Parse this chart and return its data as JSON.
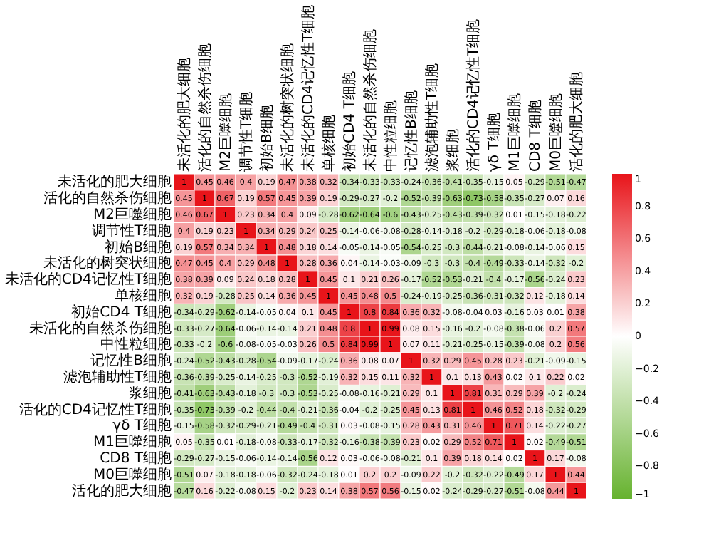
{
  "chart_data": {
    "type": "heatmap",
    "categories": [
      "未活化的肥大细胞",
      "活化的自然杀伤细胞",
      "M2巨噬细胞",
      "调节性T细胞",
      "初始B细胞",
      "未活化的树突状细胞",
      "未活化的CD4记忆性T细胞",
      "单核细胞",
      "初始CD4 T细胞",
      "未活化的自然杀伤细胞",
      "中性粒细胞",
      "记忆性B细胞",
      "滤泡辅助性T细胞",
      "浆细胞",
      "活化的CD4记忆性T细胞",
      "γδ T细胞",
      "M1巨噬细胞",
      "CD8 T细胞",
      "M0巨噬细胞",
      "活化的肥大细胞"
    ],
    "y_categories": [
      "未活化的肥大细胞",
      "活化的自然杀伤细胞",
      "M2巨噬细胞",
      "调节性T细胞",
      "初始B细胞",
      "未活化的树突状细胞",
      "未活化的CD4记忆性T细胞",
      "单核细胞",
      "初始CD4 T细胞",
      "未活化的自然杀伤细胞",
      "中性粒细胞",
      "记忆性B细胞",
      "滤泡辅助性T细胞",
      "浆细胞",
      "活化的CD4记忆性T细胞",
      "γδ T细胞",
      "M1巨噬细胞",
      "CD8 T细胞",
      "M0巨噬细胞",
      "活化的肥大细胞"
    ],
    "cells": [
      [
        1,
        0.45,
        0.46,
        0.4,
        0.19,
        0.47,
        0.38,
        0.32,
        -0.34,
        -0.33,
        -0.33,
        -0.24,
        -0.36,
        -0.41,
        -0.35,
        -0.15,
        0.05,
        -0.29,
        -0.51,
        -0.47
      ],
      [
        0.45,
        1,
        0.67,
        0.19,
        0.57,
        0.45,
        0.39,
        0.19,
        -0.29,
        -0.27,
        -0.2,
        -0.52,
        -0.39,
        -0.63,
        -0.73,
        -0.58,
        -0.35,
        -0.27,
        0.07,
        0.16
      ],
      [
        0.46,
        0.67,
        1,
        0.23,
        0.34,
        0.4,
        0.09,
        -0.28,
        -0.62,
        -0.64,
        -0.6,
        -0.43,
        -0.25,
        -0.43,
        -0.39,
        -0.32,
        0.01,
        -0.15,
        -0.18,
        -0.22
      ],
      [
        0.4,
        0.19,
        0.23,
        1,
        0.34,
        0.29,
        0.24,
        0.25,
        -0.14,
        -0.06,
        -0.08,
        -0.28,
        -0.14,
        -0.18,
        -0.2,
        -0.29,
        -0.18,
        -0.06,
        -0.18,
        -0.08
      ],
      [
        0.19,
        0.57,
        0.34,
        0.34,
        1,
        0.48,
        0.18,
        0.14,
        -0.05,
        -0.14,
        -0.05,
        -0.54,
        -0.25,
        -0.3,
        -0.44,
        -0.21,
        -0.08,
        -0.14,
        -0.06,
        0.15
      ],
      [
        0.47,
        0.45,
        0.4,
        0.29,
        0.48,
        1,
        0.28,
        0.36,
        0.04,
        -0.14,
        -0.03,
        -0.09,
        -0.3,
        -0.3,
        -0.4,
        -0.49,
        -0.33,
        -0.14,
        -0.32,
        -0.2
      ],
      [
        0.38,
        0.39,
        0.09,
        0.24,
        0.18,
        0.28,
        1,
        0.45,
        0.1,
        0.21,
        0.26,
        -0.17,
        -0.52,
        -0.53,
        -0.21,
        -0.4,
        -0.17,
        -0.56,
        -0.24,
        0.23
      ],
      [
        0.32,
        0.19,
        -0.28,
        0.25,
        0.14,
        0.36,
        0.45,
        1,
        0.45,
        0.48,
        0.5,
        -0.24,
        -0.19,
        -0.25,
        -0.36,
        -0.31,
        -0.32,
        0.12,
        -0.18,
        0.14
      ],
      [
        -0.34,
        -0.29,
        -0.62,
        -0.14,
        -0.05,
        0.04,
        0.1,
        0.45,
        1,
        0.8,
        0.84,
        0.36,
        0.32,
        -0.08,
        -0.04,
        0.03,
        -0.16,
        0.03,
        0.01,
        0.38
      ],
      [
        -0.33,
        -0.27,
        -0.64,
        -0.06,
        -0.14,
        -0.14,
        0.21,
        0.48,
        0.8,
        1,
        0.99,
        0.08,
        0.15,
        -0.16,
        -0.2,
        -0.08,
        -0.38,
        -0.06,
        0.2,
        0.57
      ],
      [
        -0.33,
        -0.2,
        -0.6,
        -0.08,
        -0.05,
        -0.03,
        0.26,
        0.5,
        0.84,
        0.99,
        1,
        0.07,
        0.11,
        -0.21,
        -0.25,
        -0.15,
        -0.39,
        -0.08,
        0.2,
        0.56
      ],
      [
        -0.24,
        -0.52,
        -0.43,
        -0.28,
        -0.54,
        -0.09,
        -0.17,
        -0.24,
        0.36,
        0.08,
        0.07,
        1,
        0.32,
        0.29,
        0.45,
        0.28,
        0.23,
        -0.21,
        -0.09,
        -0.15
      ],
      [
        -0.36,
        -0.39,
        -0.25,
        -0.14,
        -0.25,
        -0.3,
        -0.52,
        -0.19,
        0.32,
        0.15,
        0.11,
        0.32,
        1,
        0.1,
        0.13,
        0.43,
        0.02,
        0.1,
        0.22,
        0.02
      ],
      [
        -0.41,
        -0.63,
        -0.43,
        -0.18,
        -0.3,
        -0.3,
        -0.53,
        -0.25,
        -0.08,
        -0.16,
        -0.21,
        0.29,
        0.1,
        1,
        0.81,
        0.31,
        0.29,
        0.39,
        -0.2,
        -0.24
      ],
      [
        -0.35,
        -0.73,
        -0.39,
        -0.2,
        -0.44,
        -0.4,
        -0.21,
        -0.36,
        -0.04,
        -0.2,
        -0.25,
        0.45,
        0.13,
        0.81,
        1,
        0.46,
        0.52,
        0.18,
        -0.32,
        -0.29
      ],
      [
        -0.15,
        -0.58,
        -0.32,
        -0.29,
        -0.21,
        -0.49,
        -0.4,
        -0.31,
        0.03,
        -0.08,
        -0.15,
        0.28,
        0.43,
        0.31,
        0.46,
        1,
        0.71,
        0.14,
        -0.22,
        -0.27
      ],
      [
        0.05,
        -0.35,
        0.01,
        -0.18,
        -0.08,
        -0.33,
        -0.17,
        -0.32,
        -0.16,
        -0.38,
        -0.39,
        0.23,
        0.02,
        0.29,
        0.52,
        0.71,
        1,
        0.02,
        -0.49,
        -0.51
      ],
      [
        -0.29,
        -0.27,
        -0.15,
        -0.06,
        -0.14,
        -0.14,
        -0.56,
        0.12,
        0.03,
        -0.06,
        -0.08,
        -0.21,
        0.1,
        0.39,
        0.18,
        0.14,
        0.02,
        1,
        0.17,
        -0.08
      ],
      [
        -0.51,
        0.07,
        -0.18,
        -0.18,
        -0.06,
        -0.32,
        -0.24,
        -0.18,
        0.01,
        0.2,
        0.2,
        -0.09,
        0.22,
        -0.2,
        -0.32,
        -0.22,
        -0.49,
        0.17,
        1,
        0.44
      ],
      [
        -0.47,
        0.16,
        -0.22,
        -0.08,
        0.15,
        -0.2,
        0.23,
        0.14,
        0.38,
        0.57,
        0.56,
        -0.15,
        0.02,
        -0.24,
        -0.29,
        -0.27,
        -0.51,
        -0.08,
        0.44,
        1
      ]
    ],
    "colors": [
      "#66b22e",
      "#ffffff",
      "#e8141a"
    ],
    "clim": [
      -1,
      1
    ],
    "cticks": [
      -1,
      -0.8,
      -0.6,
      -0.4,
      -0.2,
      0,
      0.2,
      0.4,
      0.6,
      0.8,
      1
    ],
    "data_labels": true
  }
}
